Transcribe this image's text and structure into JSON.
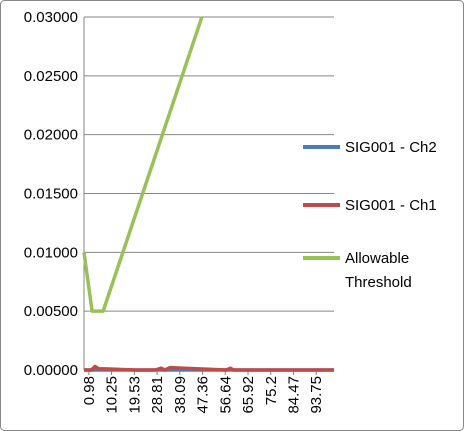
{
  "chart_data": {
    "type": "line",
    "series": [
      {
        "name": "SIG001 - Ch2",
        "color": "#4a7ebb",
        "x": [
          -1,
          101
        ],
        "values": [
          0,
          0
        ]
      },
      {
        "name": "SIG001 - Ch1",
        "color": "#be4b48",
        "x": [
          -1,
          2,
          3.5,
          5,
          8,
          20,
          28,
          30.5,
          32,
          34,
          57,
          58.8,
          60,
          101
        ],
        "values": [
          0,
          0,
          0.0003,
          0.0001,
          0.0001,
          0,
          0,
          0.00015,
          0,
          0.0002,
          0,
          0.00015,
          0,
          0
        ]
      },
      {
        "name": "Allowable Threshold",
        "color": "#98c158",
        "x": [
          -1,
          2.3,
          6.8,
          47.1
        ],
        "values": [
          0.01,
          0.005,
          0.005,
          0.03
        ]
      }
    ],
    "xlim": [
      -1,
      101
    ],
    "xticks": [
      0.98,
      10.25,
      19.53,
      28.81,
      38.09,
      47.36,
      56.64,
      65.92,
      75.2,
      84.47,
      93.75
    ],
    "ylim": [
      0,
      0.03
    ],
    "yticks": [
      {
        "value": 0,
        "label": "0.00000"
      },
      {
        "value": 0.005,
        "label": "0.00500"
      },
      {
        "value": 0.01,
        "label": "0.01000"
      },
      {
        "value": 0.015,
        "label": "0.01500"
      },
      {
        "value": 0.02,
        "label": "0.02000"
      },
      {
        "value": 0.025,
        "label": "0.02500"
      },
      {
        "value": 0.03,
        "label": "0.03000"
      }
    ],
    "grid": true
  }
}
